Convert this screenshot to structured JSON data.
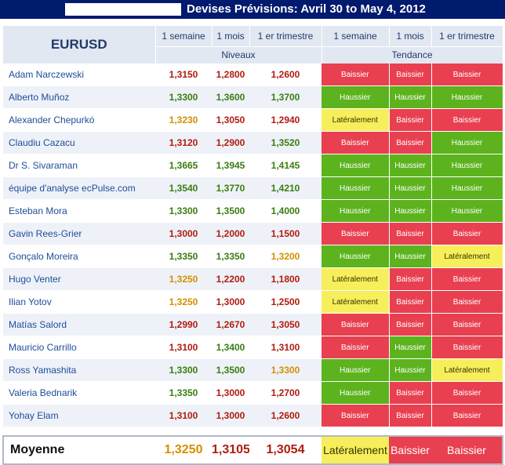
{
  "title": "Devises Prévisions: Avril 30 to May 4, 2012",
  "colors": {
    "bearish": "#e84050",
    "bullish": "#5cb31e",
    "neutral": "#f7ee5c",
    "value_red": "#b01c10",
    "value_green": "#3a7d10",
    "value_orange": "#d48f00",
    "header_navy": "#001a6e"
  },
  "chart_data": {
    "type": "table",
    "pair": "EURUSD",
    "group_headers": [
      "Niveaux",
      "Tendance"
    ],
    "columns": [
      "1 semaine",
      "1 mois",
      "1 er trimestre"
    ],
    "rows": [
      {
        "name": "Adam Narczewski",
        "levels": [
          "1,3150",
          "1,2800",
          "1,2600"
        ],
        "level_colors": [
          "red",
          "red",
          "red"
        ],
        "trend": [
          "Baissier",
          "Baissier",
          "Baissier"
        ]
      },
      {
        "name": "Alberto Muñoz",
        "levels": [
          "1,3300",
          "1,3600",
          "1,3700"
        ],
        "level_colors": [
          "green",
          "green",
          "green"
        ],
        "trend": [
          "Haussier",
          "Haussier",
          "Haussier"
        ]
      },
      {
        "name": "Alexander Chepurkó",
        "levels": [
          "1,3230",
          "1,3050",
          "1,2940"
        ],
        "level_colors": [
          "orange",
          "red",
          "red"
        ],
        "trend": [
          "Latéralement",
          "Baissier",
          "Baissier"
        ]
      },
      {
        "name": "Claudiu Cazacu",
        "levels": [
          "1,3120",
          "1,2900",
          "1,3520"
        ],
        "level_colors": [
          "red",
          "red",
          "green"
        ],
        "trend": [
          "Baissier",
          "Baissier",
          "Haussier"
        ]
      },
      {
        "name": "Dr S. Sivaraman",
        "levels": [
          "1,3665",
          "1,3945",
          "1,4145"
        ],
        "level_colors": [
          "green",
          "green",
          "green"
        ],
        "trend": [
          "Haussier",
          "Haussier",
          "Haussier"
        ]
      },
      {
        "name": "équipe d'analyse ecPulse.com",
        "levels": [
          "1,3540",
          "1,3770",
          "1,4210"
        ],
        "level_colors": [
          "green",
          "green",
          "green"
        ],
        "trend": [
          "Haussier",
          "Haussier",
          "Haussier"
        ]
      },
      {
        "name": "Esteban Mora",
        "levels": [
          "1,3300",
          "1,3500",
          "1,4000"
        ],
        "level_colors": [
          "green",
          "green",
          "green"
        ],
        "trend": [
          "Haussier",
          "Haussier",
          "Haussier"
        ]
      },
      {
        "name": "Gavin Rees-Grier",
        "levels": [
          "1,3000",
          "1,2000",
          "1,1500"
        ],
        "level_colors": [
          "red",
          "red",
          "red"
        ],
        "trend": [
          "Baissier",
          "Baissier",
          "Baissier"
        ]
      },
      {
        "name": "Gonçalo Moreira",
        "levels": [
          "1,3350",
          "1,3350",
          "1,3200"
        ],
        "level_colors": [
          "green",
          "green",
          "orange"
        ],
        "trend": [
          "Haussier",
          "Haussier",
          "Latéralement"
        ]
      },
      {
        "name": "Hugo Venter",
        "levels": [
          "1,3250",
          "1,2200",
          "1,1800"
        ],
        "level_colors": [
          "orange",
          "red",
          "red"
        ],
        "trend": [
          "Latéralement",
          "Baissier",
          "Baissier"
        ]
      },
      {
        "name": "Ilian Yotov",
        "levels": [
          "1,3250",
          "1,3000",
          "1,2500"
        ],
        "level_colors": [
          "orange",
          "red",
          "red"
        ],
        "trend": [
          "Latéralement",
          "Baissier",
          "Baissier"
        ]
      },
      {
        "name": "Matías Salord",
        "levels": [
          "1,2990",
          "1,2670",
          "1,3050"
        ],
        "level_colors": [
          "red",
          "red",
          "red"
        ],
        "trend": [
          "Baissier",
          "Baissier",
          "Baissier"
        ]
      },
      {
        "name": "Mauricio Carrillo",
        "levels": [
          "1,3100",
          "1,3400",
          "1,3100"
        ],
        "level_colors": [
          "red",
          "green",
          "red"
        ],
        "trend": [
          "Baissier",
          "Haussier",
          "Baissier"
        ]
      },
      {
        "name": "Ross Yamashita",
        "levels": [
          "1,3300",
          "1,3500",
          "1,3300"
        ],
        "level_colors": [
          "green",
          "green",
          "orange"
        ],
        "trend": [
          "Haussier",
          "Haussier",
          "Latéralement"
        ]
      },
      {
        "name": "Valeria Bednarik",
        "levels": [
          "1,3350",
          "1,3000",
          "1,2700"
        ],
        "level_colors": [
          "green",
          "red",
          "red"
        ],
        "trend": [
          "Haussier",
          "Baissier",
          "Baissier"
        ]
      },
      {
        "name": "Yohay Elam",
        "levels": [
          "1,3100",
          "1,3000",
          "1,2600"
        ],
        "level_colors": [
          "red",
          "red",
          "red"
        ],
        "trend": [
          "Baissier",
          "Baissier",
          "Baissier"
        ]
      }
    ],
    "average": {
      "label": "Moyenne",
      "levels": [
        "1,3250",
        "1,3105",
        "1,3054"
      ],
      "level_colors": [
        "orange",
        "red",
        "red"
      ],
      "trend": [
        "Latéralement",
        "Baissier",
        "Baissier"
      ]
    }
  }
}
